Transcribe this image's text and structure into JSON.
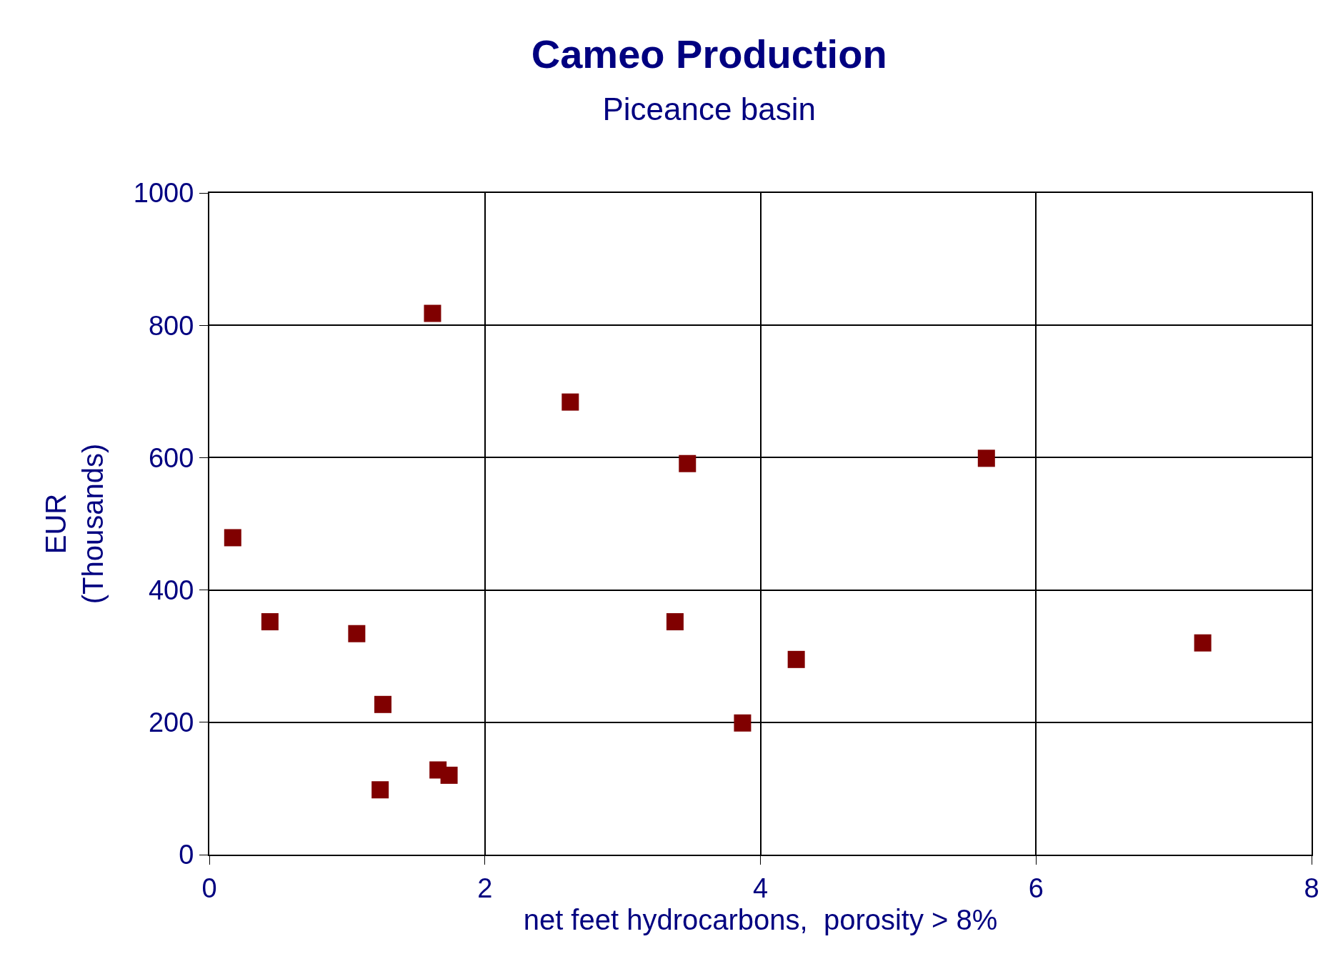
{
  "chart_data": {
    "type": "scatter",
    "title": "Cameo Production",
    "subtitle": "Piceance basin",
    "xlabel": "net feet hydrocarbons,  porosity > 8%",
    "ylabel": "EUR\n(Thousands)",
    "x": [
      0.17,
      0.44,
      1.07,
      1.26,
      1.24,
      1.62,
      1.66,
      1.74,
      2.62,
      3.47,
      3.38,
      3.87,
      4.26,
      5.64,
      7.21
    ],
    "values": [
      479,
      352,
      334,
      227,
      98,
      818,
      128,
      120,
      684,
      591,
      352,
      199,
      295,
      599,
      320
    ],
    "color": "#800000",
    "marker": "square",
    "xlim": [
      0,
      8
    ],
    "xticks": [
      0,
      2,
      4,
      6,
      8
    ],
    "ylim": [
      0,
      1000
    ],
    "yticks": [
      0,
      200,
      400,
      600,
      800,
      1000
    ],
    "grid": true,
    "legend": false
  }
}
